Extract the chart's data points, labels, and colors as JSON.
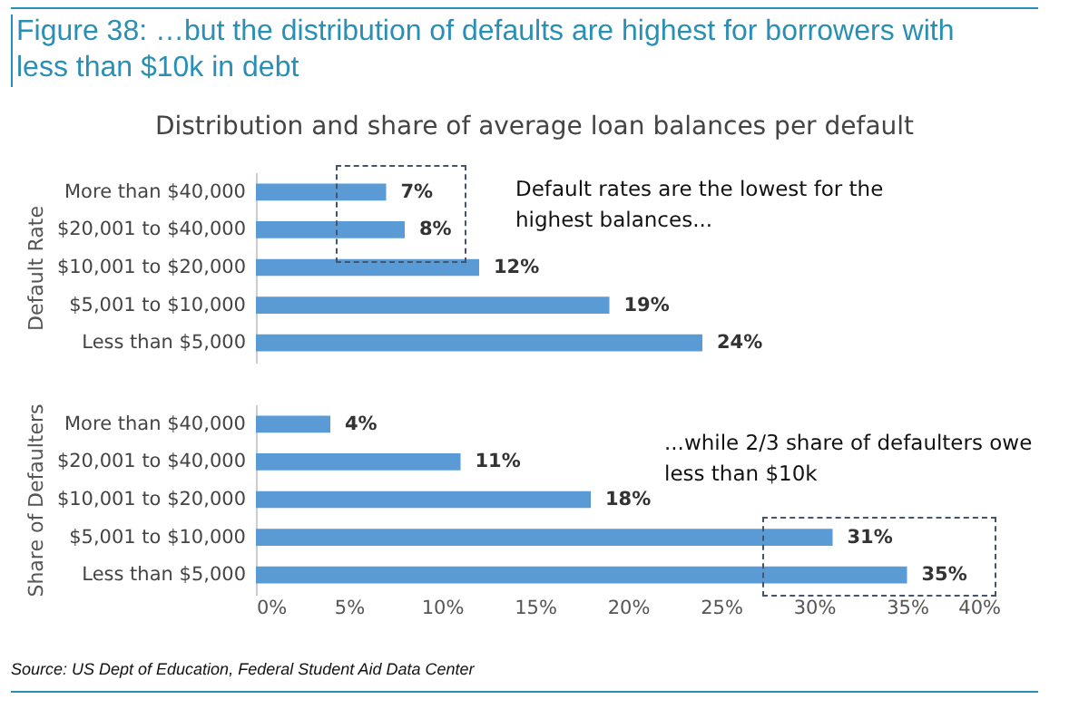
{
  "chart_data": [
    {
      "type": "bar",
      "orientation": "horizontal",
      "title": "Figure 38: …but the distribution of defaults are highest for borrowers with less than $10k in debt",
      "subtitle": "Distribution and share of average loan balances per default",
      "ylabel": "Default Rate",
      "categories": [
        "More than $40,000",
        "$20,001 to $40,000",
        "$10,001 to $20,000",
        "$5,001 to $10,000",
        "Less than $5,000"
      ],
      "values": [
        7,
        8,
        12,
        19,
        24
      ],
      "value_labels": [
        "7%",
        "8%",
        "12%",
        "19%",
        "24%"
      ],
      "color": "#5b9bd5",
      "xlim": [
        0,
        40
      ],
      "tick_labels": "y",
      "annotations": [
        "Default rates are the lowest for the highest balances..."
      ]
    },
    {
      "type": "bar",
      "orientation": "horizontal",
      "ylabel": "Share of Defaulters",
      "categories": [
        "More than $40,000",
        "$20,001 to $40,000",
        "$10,001 to $20,000",
        "$5,001 to $10,000",
        "Less than $5,000"
      ],
      "values": [
        4,
        11,
        18,
        31,
        35
      ],
      "value_labels": [
        "4%",
        "11%",
        "18%",
        "31%",
        "35%"
      ],
      "color": "#5b9bd5",
      "xlim": [
        0,
        40
      ],
      "xticks": [
        {
          "value": 0,
          "label": "0%"
        },
        {
          "value": 5,
          "label": "5%"
        },
        {
          "value": 10,
          "label": "10%"
        },
        {
          "value": 15,
          "label": "15%"
        },
        {
          "value": 20,
          "label": "20%"
        },
        {
          "value": 25,
          "label": "25%"
        },
        {
          "value": 30,
          "label": "30%"
        },
        {
          "value": 35,
          "label": "35%"
        },
        {
          "value": 40,
          "label": "40%"
        }
      ],
      "annotations": [
        "...while 2/3 share of defaulters owe less than $10k",
        "Source: US Dept of Education, Federal Student Aid Data Center"
      ]
    }
  ]
}
